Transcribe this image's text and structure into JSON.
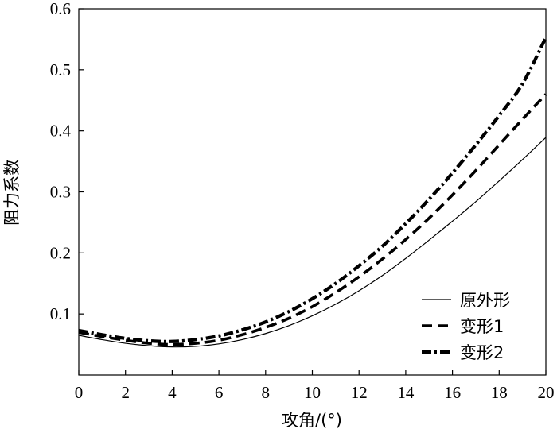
{
  "chart_data": {
    "type": "line",
    "title": "",
    "xlabel": "攻角/(°)",
    "ylabel": "阻力系数",
    "xlim": [
      0,
      20
    ],
    "ylim": [
      0,
      0.6
    ],
    "x_ticks": [
      "0",
      "2",
      "4",
      "6",
      "8",
      "10",
      "12",
      "14",
      "16",
      "18",
      "20"
    ],
    "y_ticks": [
      "0.1",
      "0.2",
      "0.3",
      "0.4",
      "0.5",
      "0.6"
    ],
    "grid": false,
    "legend_position": "bottom-right",
    "x": [
      0,
      1,
      2,
      3,
      4,
      5,
      6,
      7,
      8,
      9,
      10,
      11,
      12,
      13,
      14,
      15,
      16,
      17,
      18,
      19,
      20
    ],
    "series": [
      {
        "name": "原外形",
        "line_style": "solid",
        "color": "#000000",
        "values": [
          0.065,
          0.058,
          0.052,
          0.048,
          0.046,
          0.047,
          0.051,
          0.058,
          0.068,
          0.081,
          0.097,
          0.116,
          0.138,
          0.163,
          0.191,
          0.221,
          0.252,
          0.284,
          0.318,
          0.353,
          0.389
        ]
      },
      {
        "name": "变形1",
        "line_style": "dashed",
        "color": "#000000",
        "values": [
          0.07,
          0.063,
          0.057,
          0.052,
          0.05,
          0.052,
          0.057,
          0.066,
          0.078,
          0.093,
          0.112,
          0.135,
          0.161,
          0.19,
          0.222,
          0.257,
          0.295,
          0.335,
          0.377,
          0.419,
          0.46
        ]
      },
      {
        "name": "变形2",
        "line_style": "dash-dot",
        "color": "#000000",
        "values": [
          0.073,
          0.066,
          0.06,
          0.056,
          0.055,
          0.058,
          0.064,
          0.074,
          0.087,
          0.104,
          0.125,
          0.15,
          0.179,
          0.211,
          0.248,
          0.288,
          0.331,
          0.377,
          0.425,
          0.477,
          0.553
        ]
      }
    ]
  }
}
